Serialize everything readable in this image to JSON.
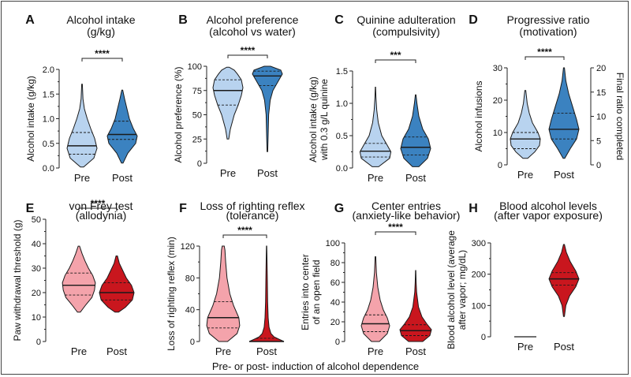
{
  "figure_footer": "Pre- or post- induction of alcohol dependence",
  "colors": {
    "blue_light": "#b8d3ef",
    "blue_dark": "#3b82c0",
    "red_light": "#f4a3ab",
    "red_dark": "#c9161e",
    "stroke": "#1a1a1a"
  },
  "chart_data": [
    {
      "panel": "A",
      "type": "violin",
      "title": "Alcohol intake",
      "subtitle": "(g/kg)",
      "ylabel": "Alcohol intake (g/kg)",
      "ylim": [
        0,
        2.0
      ],
      "yticks": [
        "0.0",
        "0.5",
        "1.0",
        "1.5",
        "2.0"
      ],
      "categories": [
        "Pre",
        "Post"
      ],
      "significance": "****",
      "series": [
        {
          "name": "Pre",
          "min": 0.02,
          "max": 1.7,
          "q1": 0.28,
          "median": 0.45,
          "q3": 0.72,
          "profile": [
            [
              0.02,
              0.1
            ],
            [
              0.2,
              0.75
            ],
            [
              0.4,
              0.95
            ],
            [
              0.6,
              0.8
            ],
            [
              0.8,
              0.55
            ],
            [
              1.0,
              0.33
            ],
            [
              1.2,
              0.15
            ],
            [
              1.4,
              0.06
            ],
            [
              1.7,
              0.02
            ]
          ]
        },
        {
          "name": "Post",
          "min": 0.1,
          "max": 1.58,
          "q1": 0.58,
          "median": 0.68,
          "q3": 0.95,
          "profile": [
            [
              0.1,
              0.05
            ],
            [
              0.3,
              0.35
            ],
            [
              0.5,
              0.85
            ],
            [
              0.65,
              0.95
            ],
            [
              0.8,
              0.7
            ],
            [
              1.0,
              0.45
            ],
            [
              1.2,
              0.3
            ],
            [
              1.4,
              0.15
            ],
            [
              1.58,
              0.03
            ]
          ]
        }
      ]
    },
    {
      "panel": "B",
      "type": "violin",
      "title": "Alcohol preference",
      "subtitle": "(alcohol vs water)",
      "ylabel": "Alcohol preference (%)",
      "ylim": [
        0,
        100
      ],
      "yticks": [
        "0",
        "25",
        "50",
        "75",
        "100"
      ],
      "categories": [
        "Pre",
        "Post"
      ],
      "significance": "****",
      "series": [
        {
          "name": "Pre",
          "min": 25,
          "max": 99,
          "q1": 60,
          "median": 75,
          "q3": 86,
          "profile": [
            [
              25,
              0.05
            ],
            [
              35,
              0.15
            ],
            [
              50,
              0.4
            ],
            [
              60,
              0.65
            ],
            [
              70,
              0.85
            ],
            [
              78,
              0.95
            ],
            [
              86,
              0.85
            ],
            [
              92,
              0.6
            ],
            [
              96,
              0.4
            ],
            [
              99,
              0.08
            ]
          ]
        },
        {
          "name": "Post",
          "min": 12,
          "max": 100,
          "q1": 80,
          "median": 90,
          "q3": 95,
          "profile": [
            [
              12,
              0.02
            ],
            [
              30,
              0.05
            ],
            [
              50,
              0.08
            ],
            [
              65,
              0.18
            ],
            [
              75,
              0.35
            ],
            [
              85,
              0.7
            ],
            [
              92,
              0.95
            ],
            [
              96,
              0.85
            ],
            [
              100,
              0.2
            ]
          ]
        }
      ]
    },
    {
      "panel": "C",
      "type": "violin",
      "title": "Quinine adulteration",
      "subtitle": "(compulsivity)",
      "ylabel": "Alcohol intake (g/kg) with 0.3 g/L quinine",
      "ylim": [
        0,
        1.5
      ],
      "yticks": [
        "0.0",
        "0.5",
        "1.0",
        "1.5"
      ],
      "categories": [
        "Pre",
        "Post"
      ],
      "significance": "***",
      "series": [
        {
          "name": "Pre",
          "min": 0.02,
          "max": 1.25,
          "q1": 0.17,
          "median": 0.26,
          "q3": 0.38,
          "profile": [
            [
              0.02,
              0.2
            ],
            [
              0.15,
              0.9
            ],
            [
              0.25,
              0.98
            ],
            [
              0.35,
              0.75
            ],
            [
              0.5,
              0.4
            ],
            [
              0.7,
              0.18
            ],
            [
              0.9,
              0.08
            ],
            [
              1.1,
              0.03
            ],
            [
              1.25,
              0.01
            ]
          ]
        },
        {
          "name": "Post",
          "min": 0.02,
          "max": 1.13,
          "q1": 0.2,
          "median": 0.32,
          "q3": 0.48,
          "profile": [
            [
              0.02,
              0.2
            ],
            [
              0.15,
              0.75
            ],
            [
              0.3,
              0.95
            ],
            [
              0.45,
              0.8
            ],
            [
              0.6,
              0.45
            ],
            [
              0.8,
              0.2
            ],
            [
              1.0,
              0.08
            ],
            [
              1.13,
              0.02
            ]
          ]
        }
      ]
    },
    {
      "panel": "D",
      "type": "violin",
      "title": "Progressive ratio",
      "subtitle": "(motivation)",
      "ylabel": "Alcohol infusions",
      "y2label": "Final ratio completed",
      "ylim": [
        0,
        30
      ],
      "yticks": [
        "0",
        "10",
        "20",
        "30"
      ],
      "y2ticks": [
        "0",
        "5",
        "10",
        "15",
        "20"
      ],
      "categories": [
        "Pre",
        "Post"
      ],
      "significance": "****",
      "series": [
        {
          "name": "Pre",
          "min": 2,
          "max": 23,
          "q1": 5,
          "median": 8,
          "q3": 10,
          "profile": [
            [
              2,
              0.15
            ],
            [
              4,
              0.6
            ],
            [
              6,
              0.9
            ],
            [
              8,
              0.95
            ],
            [
              10,
              0.8
            ],
            [
              13,
              0.45
            ],
            [
              16,
              0.25
            ],
            [
              19,
              0.12
            ],
            [
              23,
              0.03
            ]
          ]
        },
        {
          "name": "Post",
          "min": 2,
          "max": 30,
          "q1": 8,
          "median": 11,
          "q3": 16,
          "profile": [
            [
              2,
              0.05
            ],
            [
              5,
              0.4
            ],
            [
              8,
              0.8
            ],
            [
              11,
              0.95
            ],
            [
              14,
              0.8
            ],
            [
              18,
              0.55
            ],
            [
              22,
              0.3
            ],
            [
              26,
              0.12
            ],
            [
              30,
              0.03
            ]
          ]
        }
      ]
    },
    {
      "panel": "E",
      "type": "violin",
      "title": "von Frey test",
      "subtitle": "(allodynia)",
      "ylabel": "Paw withdrawal threshold (g)",
      "ylim": [
        0,
        50
      ],
      "yticks": [
        "0",
        "10",
        "20",
        "30",
        "40",
        "50"
      ],
      "categories": [
        "Pre",
        "Post"
      ],
      "significance": "****",
      "series": [
        {
          "name": "Pre",
          "min": 12,
          "max": 39,
          "q1": 19,
          "median": 23,
          "q3": 28,
          "profile": [
            [
              12,
              0.08
            ],
            [
              15,
              0.4
            ],
            [
              18,
              0.75
            ],
            [
              21,
              0.9
            ],
            [
              24,
              0.95
            ],
            [
              27,
              0.8
            ],
            [
              30,
              0.55
            ],
            [
              33,
              0.35
            ],
            [
              36,
              0.18
            ],
            [
              39,
              0.04
            ]
          ]
        },
        {
          "name": "Post",
          "min": 12,
          "max": 35,
          "q1": 17,
          "median": 20,
          "q3": 24,
          "profile": [
            [
              12,
              0.1
            ],
            [
              14,
              0.5
            ],
            [
              17,
              0.9
            ],
            [
              20,
              1.0
            ],
            [
              23,
              0.85
            ],
            [
              26,
              0.55
            ],
            [
              29,
              0.35
            ],
            [
              32,
              0.15
            ],
            [
              35,
              0.04
            ]
          ]
        }
      ]
    },
    {
      "panel": "F",
      "type": "violin",
      "title": "Loss of righting reflex",
      "subtitle": "(tolerance)",
      "ylabel": "Loss of righting reflex (min)",
      "ylim": [
        0,
        120
      ],
      "yticks": [
        "0",
        "40",
        "80",
        "120"
      ],
      "categories": [
        "Pre",
        "Post"
      ],
      "significance": "****",
      "series": [
        {
          "name": "Pre",
          "min": 0,
          "max": 120,
          "q1": 17,
          "median": 30,
          "q3": 50,
          "profile": [
            [
              0,
              0.25
            ],
            [
              10,
              0.8
            ],
            [
              20,
              0.95
            ],
            [
              30,
              0.9
            ],
            [
              45,
              0.6
            ],
            [
              60,
              0.38
            ],
            [
              80,
              0.22
            ],
            [
              100,
              0.14
            ],
            [
              115,
              0.1
            ],
            [
              120,
              0.06
            ]
          ]
        },
        {
          "name": "Post",
          "min": 0,
          "max": 120,
          "q1": 0,
          "median": 0,
          "q3": 4,
          "profile": [
            [
              0,
              1.0
            ],
            [
              3,
              0.7
            ],
            [
              6,
              0.42
            ],
            [
              10,
              0.25
            ],
            [
              18,
              0.14
            ],
            [
              30,
              0.09
            ],
            [
              50,
              0.06
            ],
            [
              80,
              0.04
            ],
            [
              110,
              0.02
            ],
            [
              120,
              0.01
            ]
          ]
        }
      ]
    },
    {
      "panel": "G",
      "type": "violin",
      "title": "Center entries",
      "subtitle": "(anxiety-like behavior)",
      "ylabel": "Entries into center of an open field",
      "ylim": [
        0,
        100
      ],
      "yticks": [
        "0",
        "20",
        "40",
        "60",
        "80",
        "100"
      ],
      "categories": [
        "Pre",
        "Post"
      ],
      "significance": "****",
      "series": [
        {
          "name": "Pre",
          "min": 0,
          "max": 86,
          "q1": 10,
          "median": 18,
          "q3": 27,
          "profile": [
            [
              0,
              0.25
            ],
            [
              8,
              0.75
            ],
            [
              16,
              0.9
            ],
            [
              24,
              0.75
            ],
            [
              32,
              0.5
            ],
            [
              42,
              0.3
            ],
            [
              55,
              0.15
            ],
            [
              70,
              0.06
            ],
            [
              86,
              0.02
            ]
          ]
        },
        {
          "name": "Post",
          "min": 0,
          "max": 72,
          "q1": 6,
          "median": 11,
          "q3": 17,
          "profile": [
            [
              0,
              0.45
            ],
            [
              6,
              0.9
            ],
            [
              12,
              1.0
            ],
            [
              18,
              0.7
            ],
            [
              25,
              0.4
            ],
            [
              35,
              0.18
            ],
            [
              50,
              0.06
            ],
            [
              60,
              0.03
            ],
            [
              72,
              0.01
            ]
          ]
        }
      ]
    },
    {
      "panel": "H",
      "type": "violin",
      "title": "Blood alcohol levels",
      "subtitle": "(after vapor exposure)",
      "ylabel": "Blood alcohol level (average after vapor; mg/dL)",
      "ylim": [
        0,
        300
      ],
      "yticks": [
        "0",
        "100",
        "200",
        "300"
      ],
      "categories": [
        "Pre",
        "Post"
      ],
      "significance": "",
      "series": [
        {
          "name": "Pre",
          "min": 0,
          "max": 0,
          "q1": 0,
          "median": 0,
          "q3": 0,
          "profile": []
        },
        {
          "name": "Post",
          "min": 65,
          "max": 295,
          "q1": 165,
          "median": 185,
          "q3": 205,
          "profile": [
            [
              65,
              0.03
            ],
            [
              100,
              0.12
            ],
            [
              130,
              0.35
            ],
            [
              160,
              0.75
            ],
            [
              185,
              0.95
            ],
            [
              210,
              0.75
            ],
            [
              240,
              0.4
            ],
            [
              270,
              0.15
            ],
            [
              295,
              0.03
            ]
          ]
        }
      ]
    }
  ]
}
